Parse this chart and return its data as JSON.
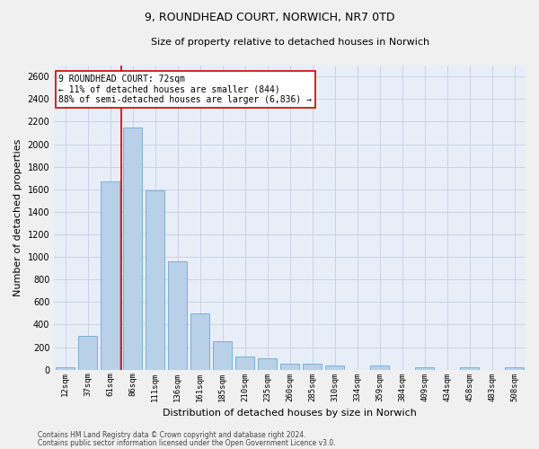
{
  "title_line1": "9, ROUNDHEAD COURT, NORWICH, NR7 0TD",
  "title_line2": "Size of property relative to detached houses in Norwich",
  "xlabel": "Distribution of detached houses by size in Norwich",
  "ylabel": "Number of detached properties",
  "categories": [
    "12sqm",
    "37sqm",
    "61sqm",
    "86sqm",
    "111sqm",
    "136sqm",
    "161sqm",
    "185sqm",
    "210sqm",
    "235sqm",
    "260sqm",
    "285sqm",
    "310sqm",
    "334sqm",
    "359sqm",
    "384sqm",
    "409sqm",
    "434sqm",
    "458sqm",
    "483sqm",
    "508sqm"
  ],
  "values": [
    25,
    300,
    1670,
    2150,
    1590,
    960,
    500,
    250,
    120,
    100,
    50,
    50,
    35,
    0,
    35,
    0,
    25,
    0,
    20,
    0,
    25
  ],
  "bar_color": "#b8d0e8",
  "bar_edgecolor": "#6aaad4",
  "vline_color": "#cc0000",
  "vline_x_index": 2.5,
  "annotation_text": "9 ROUNDHEAD COURT: 72sqm\n← 11% of detached houses are smaller (844)\n88% of semi-detached houses are larger (6,836) →",
  "annotation_box_edgecolor": "#cc0000",
  "annotation_box_facecolor": "#ffffff",
  "ylim": [
    0,
    2700
  ],
  "yticks": [
    0,
    200,
    400,
    600,
    800,
    1000,
    1200,
    1400,
    1600,
    1800,
    2000,
    2200,
    2400,
    2600
  ],
  "grid_color": "#c8d4e4",
  "bg_color": "#e8eef8",
  "fig_bg_color": "#f0f0f0",
  "title1_fontsize": 9,
  "title2_fontsize": 8,
  "ylabel_fontsize": 8,
  "xlabel_fontsize": 8,
  "ytick_fontsize": 7,
  "xtick_fontsize": 6.5,
  "annot_fontsize": 7,
  "footer_line1": "Contains HM Land Registry data © Crown copyright and database right 2024.",
  "footer_line2": "Contains public sector information licensed under the Open Government Licence v3.0.",
  "footer_fontsize": 5.5
}
